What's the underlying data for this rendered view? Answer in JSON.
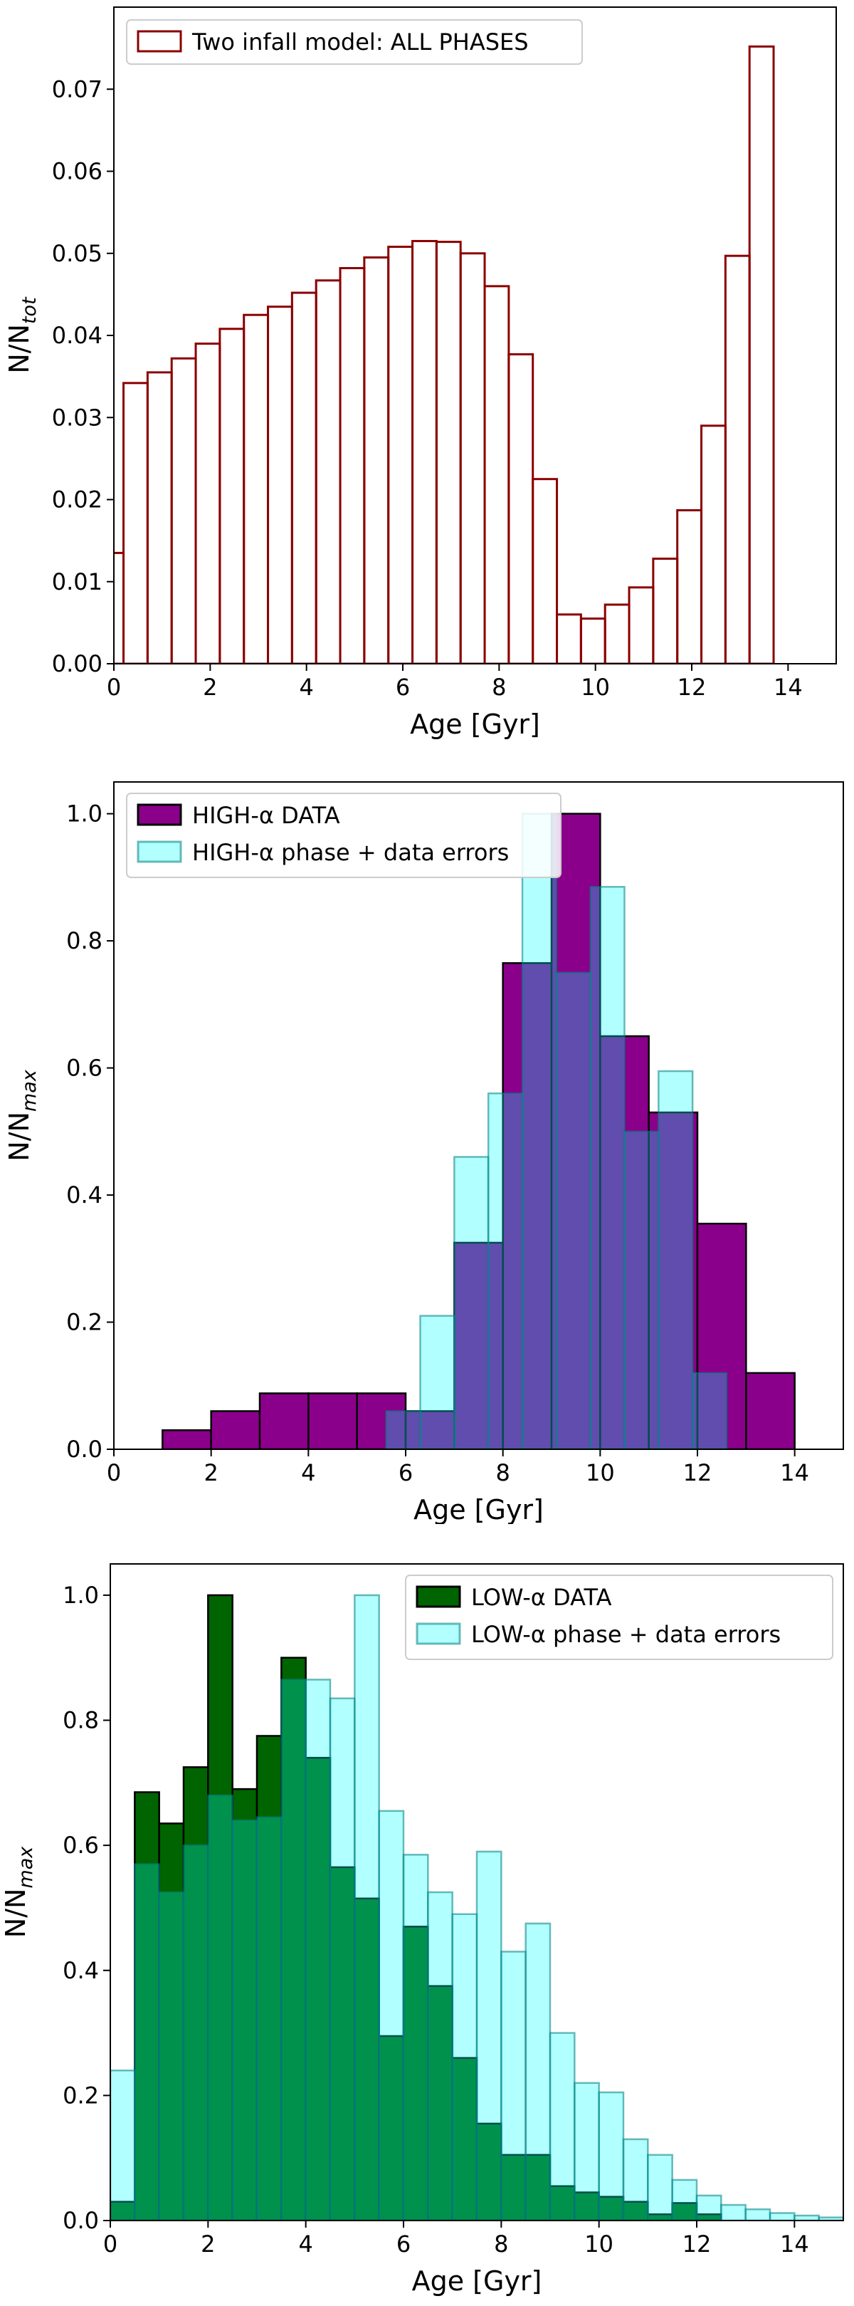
{
  "chart_data": [
    {
      "type": "bar",
      "title": "",
      "xlabel": "Age [Gyr]",
      "ylabel": "N/N",
      "ylabel_sub": "tot",
      "xlim": [
        0,
        15
      ],
      "ylim": [
        0,
        0.08
      ],
      "xticks": [
        "0",
        "2",
        "4",
        "6",
        "8",
        "10",
        "12",
        "14"
      ],
      "yticks": [
        "0.00",
        "0.01",
        "0.02",
        "0.03",
        "0.04",
        "0.05",
        "0.06",
        "0.07"
      ],
      "legend_position": "top-left",
      "series": [
        {
          "name": "Two infall model: ALL PHASES",
          "style": "step",
          "edge_color": "#8b0000",
          "bin_width": 0.5,
          "bin_start": -0.3,
          "values": [
            0.0135,
            0.0342,
            0.0355,
            0.0372,
            0.039,
            0.0408,
            0.0425,
            0.0435,
            0.0452,
            0.0467,
            0.0482,
            0.0495,
            0.0508,
            0.0515,
            0.0514,
            0.05,
            0.046,
            0.0377,
            0.0225,
            0.006,
            0.0055,
            0.0072,
            0.0093,
            0.0128,
            0.0187,
            0.029,
            0.0497,
            0.0752
          ]
        }
      ]
    },
    {
      "type": "bar",
      "title": "",
      "xlabel": "Age [Gyr]",
      "ylabel": "N/N",
      "ylabel_sub": "max",
      "xlim": [
        0,
        15
      ],
      "ylim": [
        0,
        1.05
      ],
      "xticks": [
        "0",
        "2",
        "4",
        "6",
        "8",
        "10",
        "12",
        "14"
      ],
      "yticks": [
        "0.0",
        "0.2",
        "0.4",
        "0.6",
        "0.8",
        "1.0"
      ],
      "legend_position": "top-left",
      "series": [
        {
          "name": "HIGH-α DATA",
          "fill": "#8b008b",
          "edge_color": "#000000",
          "alpha": 1,
          "bin_width": 1,
          "bin_start": 1,
          "values": [
            0.03,
            0.06,
            0.088,
            0.088,
            0.088,
            0.06,
            0.325,
            0.765,
            1.0,
            0.65,
            0.53,
            0.355,
            0.12
          ]
        },
        {
          "name": "HIGH-α phase + data errors",
          "fill": "#00ffff",
          "edge_color": "#008080",
          "alpha": 0.3,
          "bin_width": 0.7,
          "bin_start": 5.6,
          "values": [
            0.06,
            0.21,
            0.46,
            0.56,
            1.0,
            0.75,
            0.885,
            0.5,
            0.595,
            0.12
          ]
        }
      ]
    },
    {
      "type": "bar",
      "title": "",
      "xlabel": "Age [Gyr]",
      "ylabel": "N/N",
      "ylabel_sub": "max",
      "xlim": [
        0,
        15
      ],
      "ylim": [
        0,
        1.05
      ],
      "xticks": [
        "0",
        "2",
        "4",
        "6",
        "8",
        "10",
        "12",
        "14"
      ],
      "yticks": [
        "0.0",
        "0.2",
        "0.4",
        "0.6",
        "0.8",
        "1.0"
      ],
      "legend_position": "top-right",
      "series": [
        {
          "name": "LOW-α DATA",
          "fill": "#006400",
          "edge_color": "#000000",
          "alpha": 1,
          "bin_width": 0.5,
          "bin_start": 0,
          "values": [
            0.03,
            0.685,
            0.635,
            0.725,
            1.0,
            0.69,
            0.775,
            0.9,
            0.74,
            0.565,
            0.515,
            0.295,
            0.47,
            0.375,
            0.26,
            0.155,
            0.105,
            0.105,
            0.055,
            0.045,
            0.038,
            0.03,
            0.01,
            0.028,
            0.01
          ]
        },
        {
          "name": "LOW-α phase + data errors",
          "fill": "#00ffff",
          "edge_color": "#008080",
          "alpha": 0.3,
          "bin_width": 0.5,
          "bin_start": 0,
          "values": [
            0.24,
            0.57,
            0.525,
            0.6,
            0.68,
            0.64,
            0.645,
            0.865,
            0.865,
            0.835,
            1.0,
            0.655,
            0.585,
            0.525,
            0.49,
            0.59,
            0.43,
            0.475,
            0.3,
            0.22,
            0.205,
            0.13,
            0.105,
            0.065,
            0.04,
            0.025,
            0.018,
            0.012,
            0.008,
            0.005
          ]
        }
      ]
    }
  ]
}
